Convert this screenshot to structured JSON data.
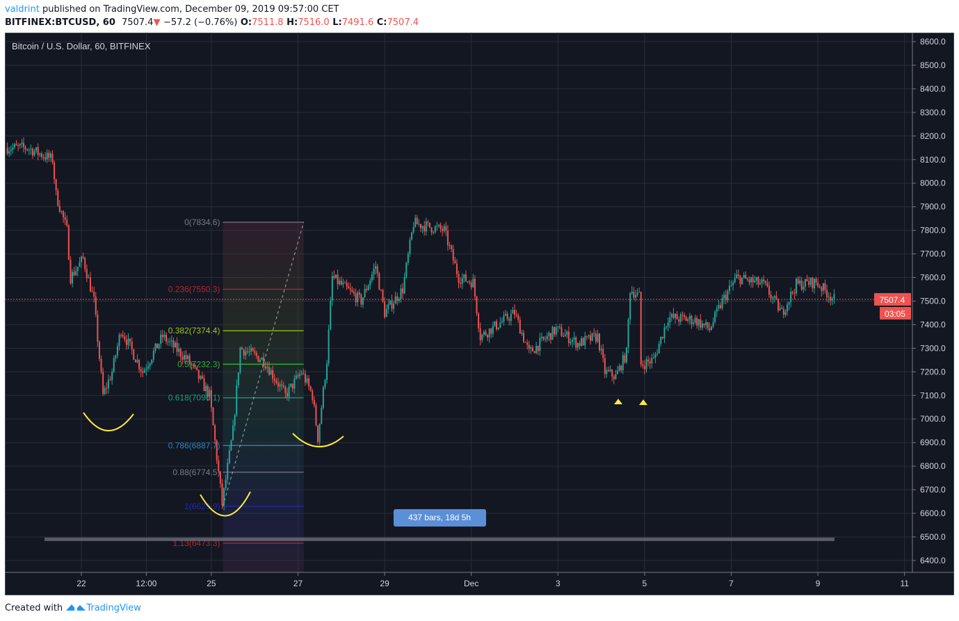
{
  "header": {
    "author": "valdrint",
    "published": " published on TradingView.com, December 09, 2019 09:57:00 CET",
    "symbol": "BITFINEX:BTCUSD, 60",
    "last": "7507.4",
    "change": "−57.2 (−0.76%)",
    "o_label": "O:",
    "o": "7511.8",
    "h_label": "H:",
    "h": "7516.0",
    "l_label": "L:",
    "l": "7491.6",
    "c_label": "C:",
    "c": "7507.4"
  },
  "footer": {
    "created": "Created with",
    "brand": "TradingView"
  },
  "colors": {
    "background": "#131722",
    "up": "#26a69a",
    "down": "#ef5350",
    "grid": "#2a2e39",
    "annotation": "#ffeb3b",
    "range_label": "#5b8fd6"
  },
  "chart_data": {
    "type": "candlestick",
    "title": "Bitcoin / U.S. Dollar, 60, BITFINEX",
    "interval": "60",
    "ylim": [
      6350,
      8630
    ],
    "y_ticks": [
      "8600.0",
      "8500.0",
      "8400.0",
      "8300.0",
      "8200.0",
      "8100.0",
      "8000.0",
      "7900.0",
      "7800.0",
      "7700.0",
      "7600.0",
      "7500.0",
      "7400.0",
      "7300.0",
      "7200.0",
      "7100.0",
      "7000.0",
      "6900.0",
      "6800.0",
      "6700.0",
      "6600.0",
      "6500.0",
      "6400.0"
    ],
    "x_ticks": [
      {
        "label": "22",
        "time": "2019-11-22T00:00"
      },
      {
        "label": "12:00",
        "time": "2019-11-23T12:00"
      },
      {
        "label": "25",
        "time": "2019-11-25T00:00"
      },
      {
        "label": "27",
        "time": "2019-11-27T00:00"
      },
      {
        "label": "29",
        "time": "2019-11-29T00:00"
      },
      {
        "label": "Dec",
        "time": "2019-12-01T00:00"
      },
      {
        "label": "3",
        "time": "2019-12-03T00:00"
      },
      {
        "label": "5",
        "time": "2019-12-05T00:00"
      },
      {
        "label": "7",
        "time": "2019-12-07T00:00"
      },
      {
        "label": "9",
        "time": "2019-12-09T00:00"
      },
      {
        "label": "11",
        "time": "2019-12-11T00:00"
      }
    ],
    "approx_price_path": [
      [
        "2019-11-20T07:00",
        8150
      ],
      [
        "2019-11-20T18:00",
        8150
      ],
      [
        "2019-11-21T08:00",
        8100
      ],
      [
        "2019-11-21T10:00",
        7950
      ],
      [
        "2019-11-21T16:00",
        7800
      ],
      [
        "2019-11-21T18:00",
        7600
      ],
      [
        "2019-11-22T01:00",
        7680
      ],
      [
        "2019-11-22T07:00",
        7500
      ],
      [
        "2019-11-22T12:00",
        7100
      ],
      [
        "2019-11-22T17:00",
        7200
      ],
      [
        "2019-11-22T22:00",
        7380
      ],
      [
        "2019-11-23T10:00",
        7200
      ],
      [
        "2019-11-23T21:00",
        7350
      ],
      [
        "2019-11-24T11:00",
        7250
      ],
      [
        "2019-11-24T23:00",
        7100
      ],
      [
        "2019-11-25T06:00",
        6640
      ],
      [
        "2019-11-25T12:00",
        6950
      ],
      [
        "2019-11-25T16:00",
        7300
      ],
      [
        "2019-11-26T05:00",
        7250
      ],
      [
        "2019-11-26T17:00",
        7100
      ],
      [
        "2019-11-27T02:00",
        7200
      ],
      [
        "2019-11-27T08:00",
        7100
      ],
      [
        "2019-11-27T11:00",
        6920
      ],
      [
        "2019-11-27T16:00",
        7250
      ],
      [
        "2019-11-27T19:00",
        7600
      ],
      [
        "2019-11-28T11:00",
        7500
      ],
      [
        "2019-11-28T19:00",
        7650
      ],
      [
        "2019-11-29T00:00",
        7450
      ],
      [
        "2019-11-29T10:00",
        7550
      ],
      [
        "2019-11-29T16:00",
        7830
      ],
      [
        "2019-11-30T09:00",
        7800
      ],
      [
        "2019-11-30T17:00",
        7600
      ],
      [
        "2019-12-01T01:00",
        7580
      ],
      [
        "2019-12-01T05:00",
        7350
      ],
      [
        "2019-12-02T00:00",
        7450
      ],
      [
        "2019-12-02T08:00",
        7280
      ],
      [
        "2019-12-02T23:00",
        7380
      ],
      [
        "2019-12-03T11:00",
        7320
      ],
      [
        "2019-12-03T22:00",
        7350
      ],
      [
        "2019-12-04T02:00",
        7200
      ],
      [
        "2019-12-04T08:00",
        7180
      ],
      [
        "2019-12-04T14:00",
        7280
      ],
      [
        "2019-12-04T16:00",
        7550
      ],
      [
        "2019-12-04T21:00",
        7520
      ],
      [
        "2019-12-04T22:00",
        7230
      ],
      [
        "2019-12-05T05:00",
        7250
      ],
      [
        "2019-12-05T13:00",
        7430
      ],
      [
        "2019-12-06T04:00",
        7420
      ],
      [
        "2019-12-06T12:00",
        7380
      ],
      [
        "2019-12-06T19:00",
        7500
      ],
      [
        "2019-12-07T03:00",
        7600
      ],
      [
        "2019-12-07T18:00",
        7570
      ],
      [
        "2019-12-08T04:00",
        7450
      ],
      [
        "2019-12-08T12:00",
        7570
      ],
      [
        "2019-12-08T23:00",
        7580
      ],
      [
        "2019-12-09T09:00",
        7507.4
      ]
    ],
    "current_price": {
      "value": 7507.4,
      "label": "7507.4",
      "countdown": "03:05"
    },
    "fibonacci": {
      "start": {
        "time": "2019-11-25T06:00",
        "price": 6629.9
      },
      "end": {
        "time": "2019-11-27T02:00",
        "price": 7834.6
      },
      "levels": [
        {
          "label": "0(7834.6)",
          "price": 7834.6,
          "color": "#787b86"
        },
        {
          "label": "0.236(7550.3)",
          "price": 7550.3,
          "color": "#b22833"
        },
        {
          "label": "0.382(7374.4)",
          "price": 7374.4,
          "color": "#9fc71a"
        },
        {
          "label": "0.5(7232.3)",
          "price": 7232.3,
          "color": "#34b233"
        },
        {
          "label": "0.618(7090.1)",
          "price": 7090.1,
          "color": "#1e9e76"
        },
        {
          "label": "0.786(6887.7)",
          "price": 6887.7,
          "color": "#2a85c2"
        },
        {
          "label": "0.88(6774.5)",
          "price": 6774.5,
          "color": "#787b86"
        },
        {
          "label": "1(6629.9)",
          "price": 6629.9,
          "color": "#2527b0"
        },
        {
          "label": "1.13(6473.3)",
          "price": 6473.3,
          "color": "#b22833"
        }
      ]
    },
    "date_range_label": "437 bars, 18d 5h",
    "support_line_price": 6490,
    "annotations": [
      "arc-bottom-nov22",
      "arc-bottom-nov25",
      "arc-bottom-nov27",
      "triangle-up-dec4",
      "triangle-up-dec5"
    ]
  }
}
